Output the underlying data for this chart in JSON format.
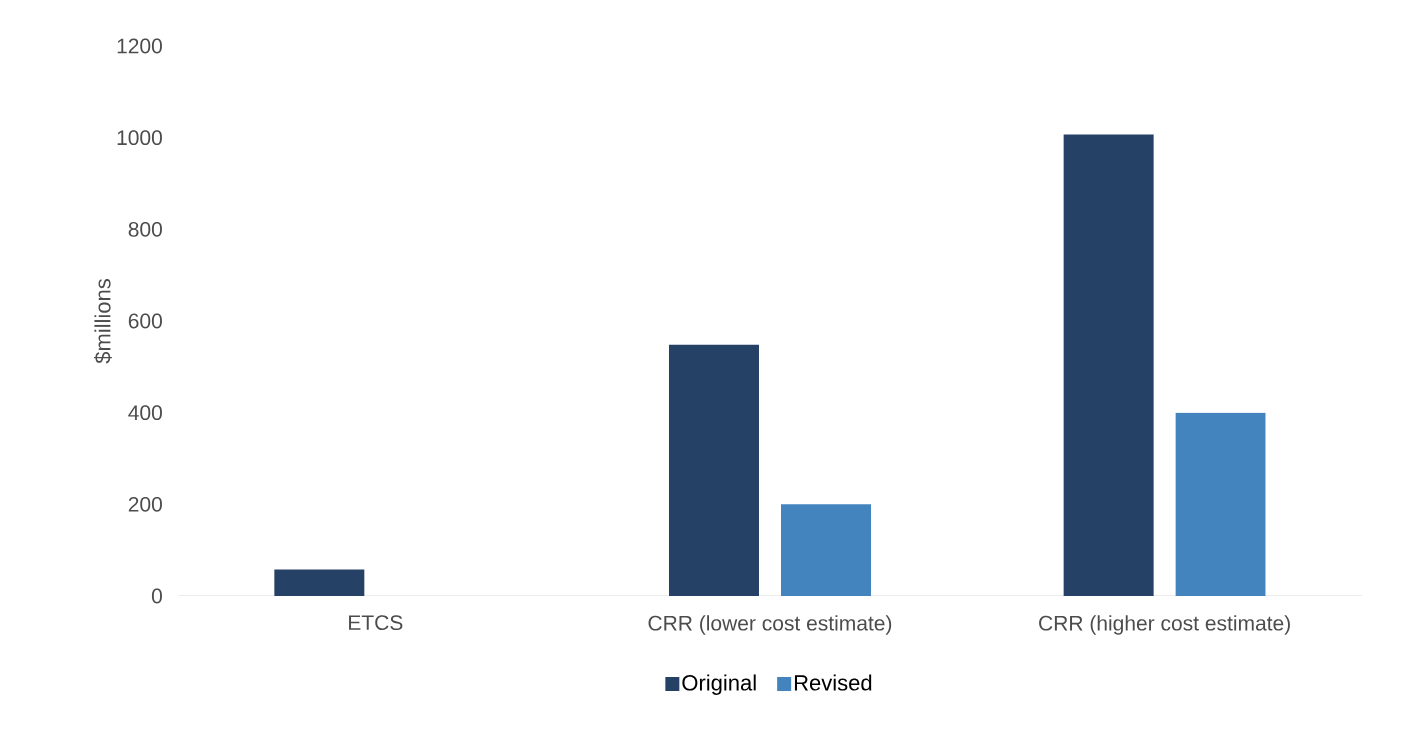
{
  "chart_data": {
    "type": "bar",
    "ylabel": "$millions",
    "categories": [
      "ETCS",
      "CRR (lower cost estimate)",
      "CRR (higher cost estimate)"
    ],
    "series": [
      {
        "name": "Original",
        "color": "#264166",
        "values": [
          58,
          548,
          1007
        ]
      },
      {
        "name": "Revised",
        "color": "#4383be",
        "values": [
          null,
          200,
          400
        ]
      }
    ],
    "ylim": [
      0,
      1200
    ],
    "yticks": [
      0,
      200,
      400,
      600,
      800,
      1000,
      1200
    ],
    "grid": false,
    "legend": "bottom"
  }
}
